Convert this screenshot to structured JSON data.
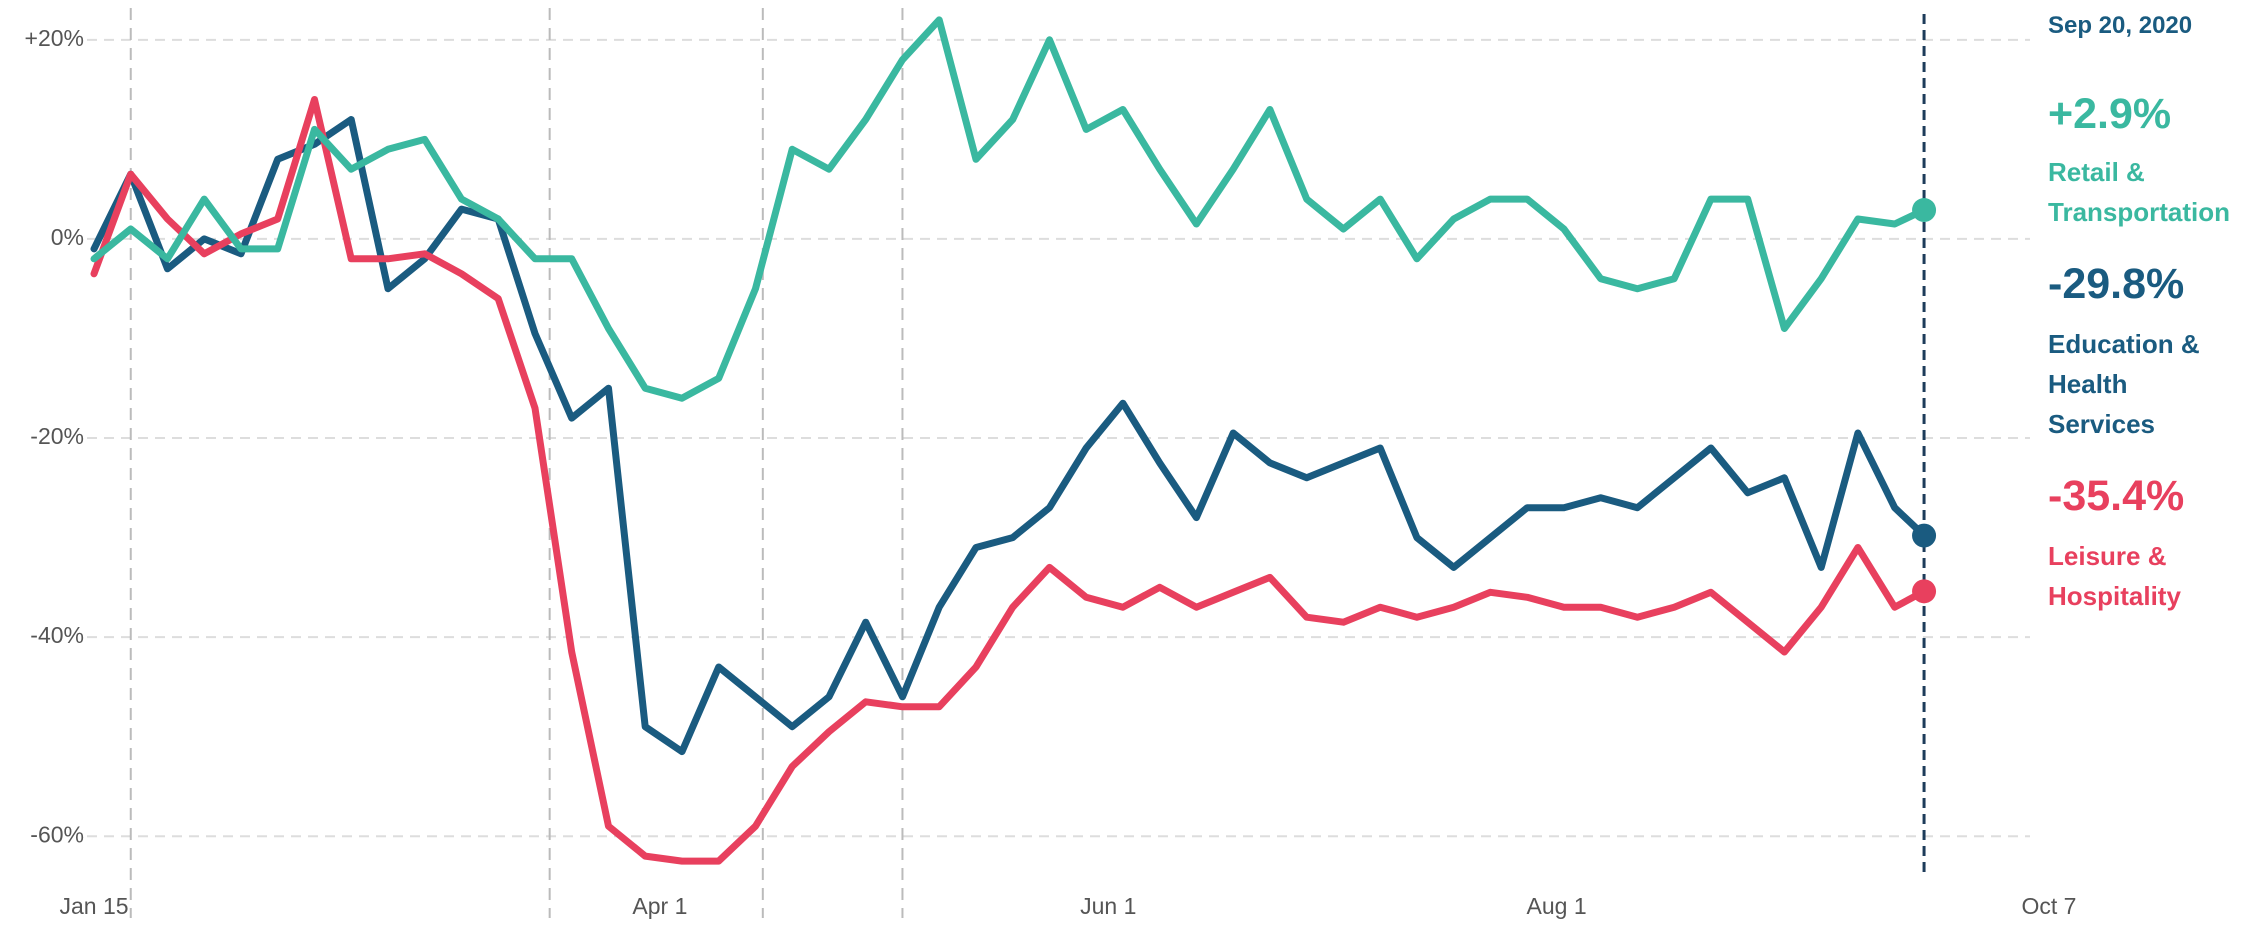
{
  "chart_data": {
    "type": "line",
    "date_label": "Sep 20, 2020",
    "highlight_x": "2020-09-20",
    "event_x": [
      "2020-01-20",
      "2020-03-17",
      "2020-04-15",
      "2020-05-04"
    ],
    "x": [
      "2020-01-15",
      "2020-01-20",
      "2020-01-25",
      "2020-01-30",
      "2020-02-04",
      "2020-02-09",
      "2020-02-14",
      "2020-02-19",
      "2020-02-24",
      "2020-02-29",
      "2020-03-05",
      "2020-03-10",
      "2020-03-15",
      "2020-03-20",
      "2020-03-25",
      "2020-03-30",
      "2020-04-04",
      "2020-04-09",
      "2020-04-14",
      "2020-04-19",
      "2020-04-24",
      "2020-04-29",
      "2020-05-04",
      "2020-05-09",
      "2020-05-14",
      "2020-05-19",
      "2020-05-24",
      "2020-05-29",
      "2020-06-03",
      "2020-06-08",
      "2020-06-13",
      "2020-06-18",
      "2020-06-23",
      "2020-06-28",
      "2020-07-03",
      "2020-07-08",
      "2020-07-13",
      "2020-07-18",
      "2020-07-23",
      "2020-07-28",
      "2020-08-02",
      "2020-08-07",
      "2020-08-12",
      "2020-08-17",
      "2020-08-22",
      "2020-08-27",
      "2020-09-01",
      "2020-09-06",
      "2020-09-11",
      "2020-09-16",
      "2020-09-20"
    ],
    "series": [
      {
        "name": "Retail & Transportation",
        "color": "#3ab8a0",
        "last_label": "+2.9%",
        "values": [
          -2,
          1,
          -2,
          4,
          -1,
          -1,
          11,
          7,
          9,
          10,
          4,
          2,
          -2,
          -2,
          -9,
          -15,
          -16,
          -14,
          -5,
          9,
          7,
          12,
          18,
          22,
          8,
          12,
          20,
          11,
          13,
          7,
          1.5,
          7,
          13,
          4,
          1,
          4,
          -2,
          2,
          4,
          4,
          1,
          -4,
          -5,
          -4,
          4,
          4,
          -9,
          -4,
          2,
          1.5,
          2.9
        ]
      },
      {
        "name": "Education & Health Services",
        "color": "#1a5b80",
        "last_label": "-29.8%",
        "values": [
          -1,
          6.5,
          -3,
          0,
          -1.5,
          8,
          9.5,
          12,
          -5,
          -2,
          3,
          2,
          -9.5,
          -18,
          -15,
          -49,
          -51.5,
          -43,
          -46,
          -49,
          -46,
          -38.5,
          -46,
          -37,
          -31,
          -30,
          -27,
          -21,
          -16.5,
          -22.5,
          -28,
          -19.5,
          -22.5,
          -24,
          -22.5,
          -21,
          -30,
          -33,
          -30,
          -27,
          -27,
          -26,
          -27,
          -24,
          -21,
          -25.5,
          -24,
          -33,
          -19.5,
          -27,
          -29.8
        ]
      },
      {
        "name": "Leisure & Hospitality",
        "color": "#e8405e",
        "last_label": "-35.4%",
        "values": [
          -3.5,
          6.5,
          2,
          -1.5,
          0.5,
          2,
          14,
          -2,
          -2,
          -1.5,
          -3.5,
          -6,
          -17,
          -41.5,
          -59,
          -62,
          -62.5,
          -62.5,
          -59,
          -53,
          -49.5,
          -46.5,
          -47,
          -47,
          -43,
          -37,
          -33,
          -36,
          -37,
          -35,
          -37,
          -35.5,
          -34,
          -38,
          -38.5,
          -37,
          -38,
          -37,
          -35.5,
          -36,
          -37,
          -37,
          -38,
          -37,
          -35.5,
          -38.5,
          -41.5,
          -37,
          -31,
          -37,
          -35.4
        ]
      }
    ],
    "xlim": [
      "2020-01-15",
      "2020-10-07"
    ],
    "xticks": [
      {
        "value": "2020-01-15",
        "label": "Jan 15"
      },
      {
        "value": "2020-04-01",
        "label": "Apr 1"
      },
      {
        "value": "2020-06-01",
        "label": "Jun 1"
      },
      {
        "value": "2020-08-01",
        "label": "Aug 1"
      },
      {
        "value": "2020-10-07",
        "label": "Oct 7"
      }
    ],
    "ylim": [
      -64.5,
      24
    ],
    "yticks": [
      {
        "value": 20,
        "label": "+20%"
      },
      {
        "value": 0,
        "label": "0%"
      },
      {
        "value": -20,
        "label": "-20%"
      },
      {
        "value": -40,
        "label": "-40%"
      },
      {
        "value": -60,
        "label": "-60%"
      }
    ],
    "grid": true
  }
}
